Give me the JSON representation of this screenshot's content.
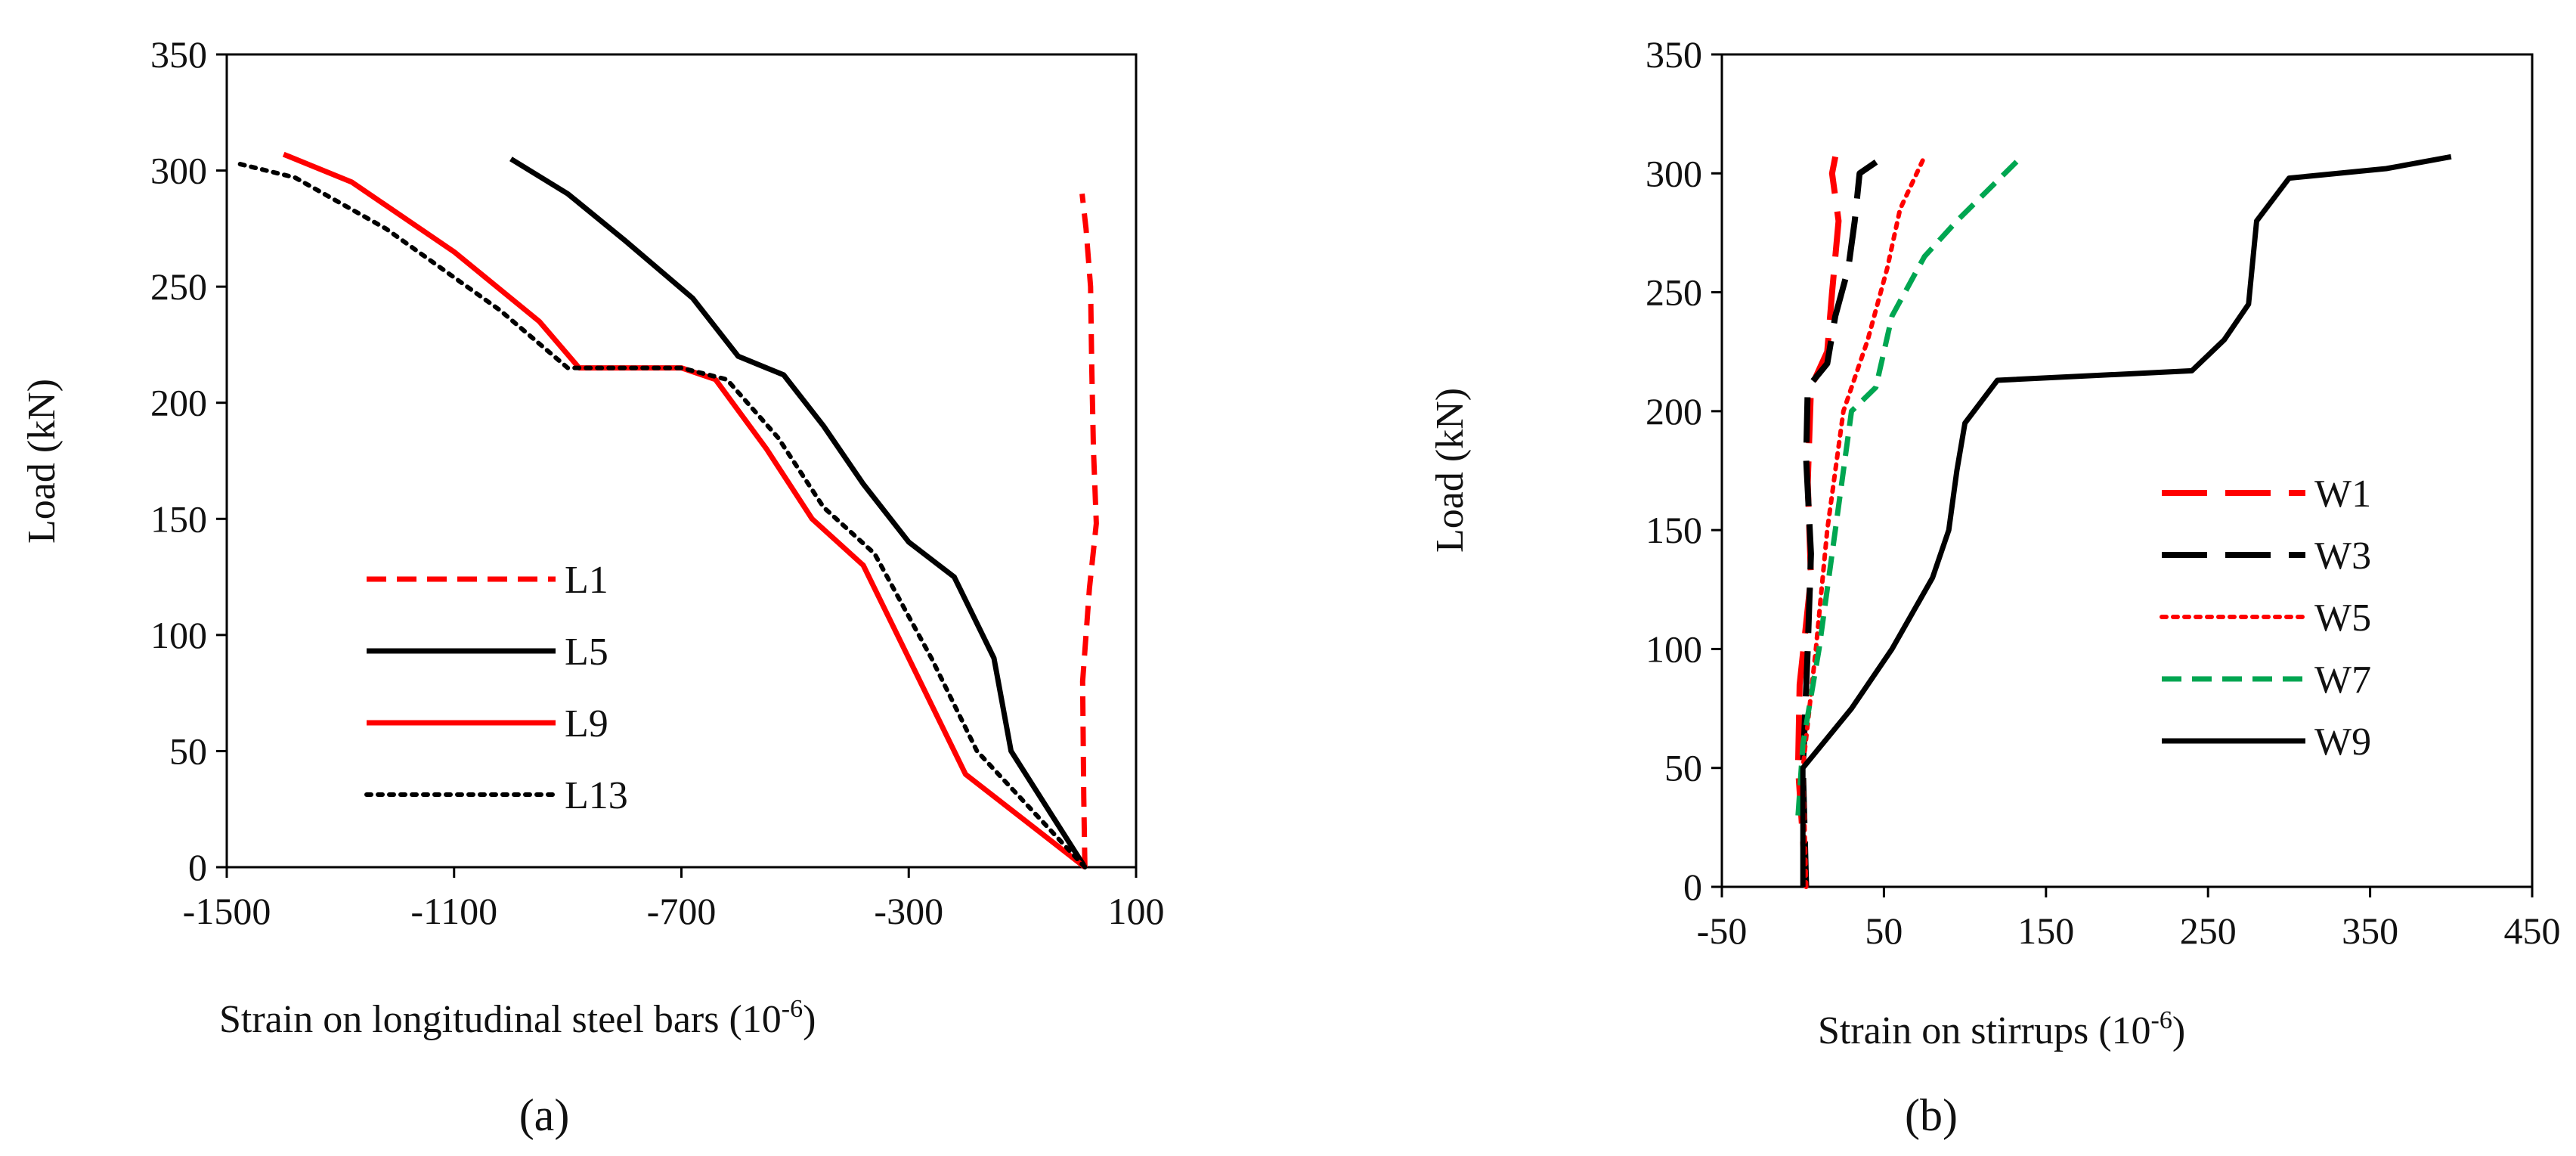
{
  "chart_data": [
    {
      "type": "line",
      "panel_label": "(a)",
      "xlabel": "Strain on longitudinal  steel bars (10-6)",
      "xlabel_main": "Strain on longitudinal  steel bars (10",
      "xlabel_sup": "-6",
      "xlabel_end": ")",
      "ylabel": "Load (kN)",
      "xlim": [
        -1500,
        100
      ],
      "ylim": [
        0,
        350
      ],
      "xticks": [
        -1500,
        -1100,
        -700,
        -300,
        100
      ],
      "yticks": [
        0,
        50,
        100,
        150,
        200,
        250,
        300,
        350
      ],
      "legend_position": "lower-left",
      "series": [
        {
          "name": "L1",
          "color": "#ff0000",
          "style": "dashed",
          "points": [
            [
              10,
              0
            ],
            [
              8,
              30
            ],
            [
              6,
              80
            ],
            [
              18,
              120
            ],
            [
              30,
              148
            ],
            [
              25,
              180
            ],
            [
              22,
              215
            ],
            [
              20,
              250
            ],
            [
              12,
              275
            ],
            [
              5,
              290
            ]
          ]
        },
        {
          "name": "L5",
          "color": "#000000",
          "style": "solid",
          "points": [
            [
              10,
              0
            ],
            [
              -120,
              50
            ],
            [
              -150,
              90
            ],
            [
              -220,
              125
            ],
            [
              -300,
              140
            ],
            [
              -380,
              165
            ],
            [
              -450,
              190
            ],
            [
              -520,
              212
            ],
            [
              -600,
              220
            ],
            [
              -680,
              245
            ],
            [
              -800,
              270
            ],
            [
              -900,
              290
            ],
            [
              -1000,
              305
            ]
          ]
        },
        {
          "name": "L9",
          "color": "#ff0000",
          "style": "solid",
          "points": [
            [
              10,
              0
            ],
            [
              -200,
              40
            ],
            [
              -280,
              80
            ],
            [
              -380,
              130
            ],
            [
              -470,
              150
            ],
            [
              -550,
              180
            ],
            [
              -640,
              210
            ],
            [
              -700,
              215
            ],
            [
              -880,
              215
            ],
            [
              -950,
              235
            ],
            [
              -1100,
              265
            ],
            [
              -1280,
              295
            ],
            [
              -1400,
              307
            ]
          ]
        },
        {
          "name": "L13",
          "color": "#000000",
          "style": "dotted",
          "points": [
            [
              10,
              0
            ],
            [
              -180,
              50
            ],
            [
              -260,
              90
            ],
            [
              -360,
              135
            ],
            [
              -450,
              155
            ],
            [
              -530,
              185
            ],
            [
              -620,
              210
            ],
            [
              -700,
              215
            ],
            [
              -900,
              215
            ],
            [
              -1020,
              240
            ],
            [
              -1220,
              275
            ],
            [
              -1380,
              297
            ],
            [
              -1480,
              303
            ]
          ]
        }
      ]
    },
    {
      "type": "line",
      "panel_label": "(b)",
      "xlabel": "Strain on stirrups (10-6)",
      "xlabel_main": "Strain on stirrups (10",
      "xlabel_sup": "-6",
      "xlabel_end": ")",
      "ylabel": "Load (kN)",
      "xlim": [
        -50,
        450
      ],
      "ylim": [
        0,
        350
      ],
      "xticks": [
        -50,
        50,
        150,
        250,
        350,
        450
      ],
      "yticks": [
        0,
        50,
        100,
        150,
        200,
        250,
        300,
        350
      ],
      "legend_position": "right",
      "series": [
        {
          "name": "W1",
          "color": "#ff0000",
          "style": "longdash",
          "points": [
            [
              2,
              0
            ],
            [
              -3,
              50
            ],
            [
              -2,
              85
            ],
            [
              5,
              130
            ],
            [
              3,
              170
            ],
            [
              5,
              210
            ],
            [
              15,
              225
            ],
            [
              18,
              250
            ],
            [
              22,
              280
            ],
            [
              18,
              300
            ],
            [
              20,
              307
            ]
          ]
        },
        {
          "name": "W3",
          "color": "#000000",
          "style": "longdash",
          "points": [
            [
              2,
              0
            ],
            [
              0,
              50
            ],
            [
              3,
              100
            ],
            [
              5,
              140
            ],
            [
              2,
              180
            ],
            [
              3,
              210
            ],
            [
              15,
              220
            ],
            [
              20,
              240
            ],
            [
              28,
              260
            ],
            [
              32,
              280
            ],
            [
              35,
              300
            ],
            [
              50,
              307
            ]
          ]
        },
        {
          "name": "W5",
          "color": "#ff0000",
          "style": "dotted",
          "points": [
            [
              2,
              0
            ],
            [
              0,
              50
            ],
            [
              8,
              100
            ],
            [
              15,
              150
            ],
            [
              25,
              200
            ],
            [
              40,
              230
            ],
            [
              52,
              260
            ],
            [
              60,
              285
            ],
            [
              75,
              307
            ]
          ]
        },
        {
          "name": "W7",
          "color": "#00a651",
          "style": "dashed",
          "points": [
            [
              -3,
              30
            ],
            [
              0,
              60
            ],
            [
              10,
              100
            ],
            [
              20,
              150
            ],
            [
              30,
              200
            ],
            [
              45,
              210
            ],
            [
              55,
              240
            ],
            [
              75,
              265
            ],
            [
              95,
              280
            ],
            [
              135,
              307
            ]
          ]
        },
        {
          "name": "W9",
          "color": "#000000",
          "style": "solid",
          "points": [
            [
              0,
              0
            ],
            [
              0,
              50
            ],
            [
              30,
              75
            ],
            [
              55,
              100
            ],
            [
              80,
              130
            ],
            [
              90,
              150
            ],
            [
              95,
              175
            ],
            [
              100,
              195
            ],
            [
              120,
              213
            ],
            [
              240,
              217
            ],
            [
              260,
              230
            ],
            [
              275,
              245
            ],
            [
              280,
              280
            ],
            [
              300,
              298
            ],
            [
              360,
              302
            ],
            [
              400,
              307
            ]
          ]
        }
      ]
    }
  ]
}
